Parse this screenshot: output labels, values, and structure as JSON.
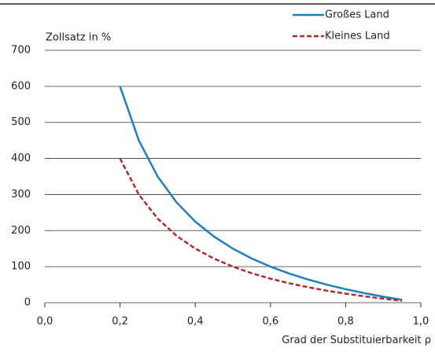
{
  "chart_data": {
    "type": "line",
    "y_label": "Zollsatz in %",
    "x_label": "Grad der Substituierbarkeit ρ",
    "x": [
      0.2,
      0.25,
      0.3,
      0.35,
      0.4,
      0.45,
      0.5,
      0.55,
      0.6,
      0.65,
      0.7,
      0.75,
      0.8,
      0.85,
      0.9,
      0.95
    ],
    "series": [
      {
        "name": "Großes Land",
        "color": "#1f7fc0",
        "dash": false,
        "values": [
          600,
          450,
          350,
          278.6,
          225,
          183.3,
          150,
          122.7,
          100,
          80.8,
          64.3,
          50,
          37.5,
          26.5,
          16.7,
          7.9
        ]
      },
      {
        "name": "Kleines Land",
        "color": "#b22a2e",
        "dash": true,
        "values": [
          400,
          300,
          233.3,
          185.7,
          150,
          122.2,
          100,
          81.8,
          66.7,
          53.8,
          42.9,
          33.3,
          25,
          17.6,
          11.1,
          5.3
        ]
      }
    ],
    "xlim": [
      0,
      1
    ],
    "ylim": [
      0,
      700
    ],
    "xticks": [
      {
        "value": 0,
        "label": "0,0"
      },
      {
        "value": 0.2,
        "label": "0,2"
      },
      {
        "value": 0.4,
        "label": "0,4"
      },
      {
        "value": 0.6,
        "label": "0,6"
      },
      {
        "value": 0.8,
        "label": "0,8"
      },
      {
        "value": 1,
        "label": "1,0"
      }
    ],
    "yticks": [
      0,
      100,
      200,
      300,
      400,
      500,
      600,
      700
    ],
    "grid": true
  }
}
